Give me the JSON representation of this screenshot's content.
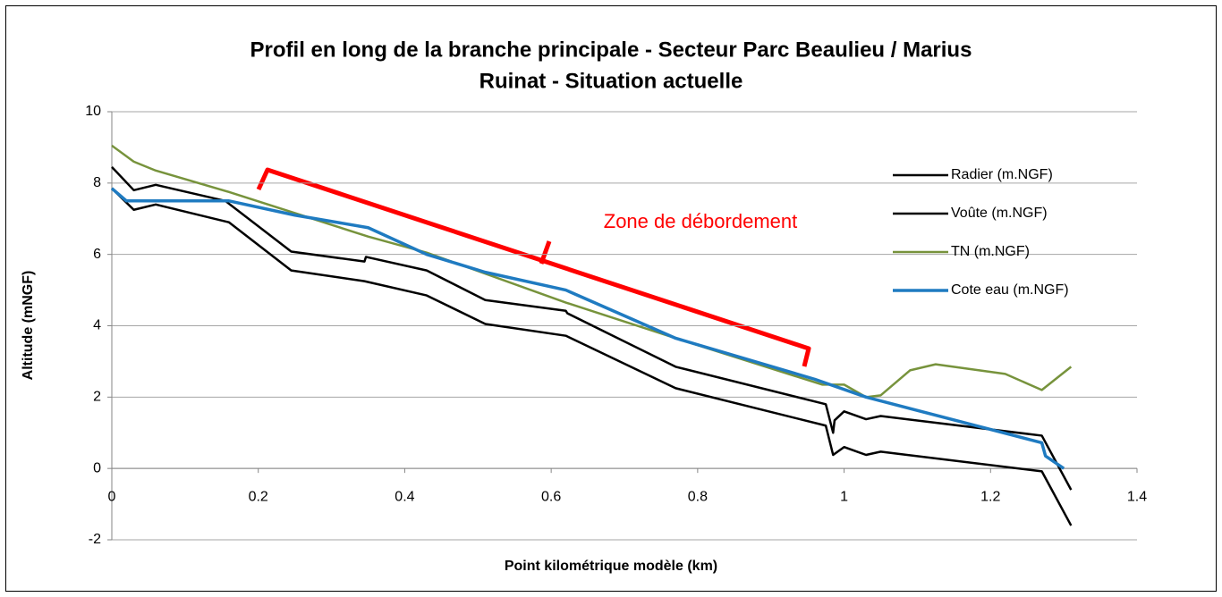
{
  "chart_data": {
    "type": "line",
    "title": [
      "Profil en long de la branche principale - Secteur Parc Beaulieu / Marius",
      "Ruinat - Situation actuelle"
    ],
    "x_label": "Point kilométrique modèle (km)",
    "y_label": "Altitude (mNGF)",
    "annotation": "Zone de débordement",
    "xlim": [
      0,
      1.4
    ],
    "xticks": [
      0,
      0.2,
      0.4,
      0.6,
      0.8,
      1,
      1.2,
      1.4
    ],
    "ylim": [
      -2,
      10
    ],
    "yticks": [
      -2,
      0,
      2,
      4,
      6,
      8,
      10
    ],
    "grid": true,
    "legend": "right",
    "series": [
      {
        "name": "Radier (m.NGF)",
        "color": "#000000",
        "x": [
          0,
          0.03,
          0.06,
          0.16,
          0.245,
          0.345,
          0.43,
          0.51,
          0.62,
          0.77,
          0.975,
          0.985,
          1.0,
          1.03,
          1.05,
          1.27,
          1.31
        ],
        "values": [
          7.85,
          7.25,
          7.4,
          6.9,
          5.55,
          5.25,
          4.85,
          4.05,
          3.72,
          2.25,
          1.2,
          0.38,
          0.6,
          0.38,
          0.47,
          -0.08,
          -1.6
        ]
      },
      {
        "name": "Voûte (m.NGF)",
        "color": "#000000",
        "x": [
          0,
          0.03,
          0.06,
          0.155,
          0.245,
          0.345,
          0.347,
          0.43,
          0.51,
          0.62,
          0.622,
          0.77,
          0.975,
          0.985,
          0.987,
          1.0,
          1.03,
          1.05,
          1.27,
          1.31
        ],
        "values": [
          8.45,
          7.8,
          7.95,
          7.5,
          6.08,
          5.8,
          5.93,
          5.55,
          4.72,
          4.42,
          4.35,
          2.85,
          1.8,
          1.0,
          1.35,
          1.6,
          1.38,
          1.47,
          0.92,
          -0.6
        ]
      },
      {
        "name": "TN (m.NGF)",
        "color": "#77933c",
        "x": [
          0,
          0.03,
          0.06,
          0.16,
          0.35,
          0.43,
          0.62,
          0.77,
          0.97,
          1.0,
          1.03,
          1.05,
          1.09,
          1.125,
          1.22,
          1.27,
          1.31
        ],
        "values": [
          9.05,
          8.6,
          8.35,
          7.75,
          6.5,
          6.05,
          4.65,
          3.65,
          2.35,
          2.35,
          2.0,
          2.05,
          2.75,
          2.92,
          2.65,
          2.2,
          2.85
        ]
      },
      {
        "name": "Cote eau (m.NGF)",
        "color": "#1f7bc1",
        "x": [
          0,
          0.02,
          0.16,
          0.25,
          0.35,
          0.43,
          0.51,
          0.62,
          0.77,
          0.96,
          1.03,
          1.27,
          1.275,
          1.3
        ],
        "values": [
          7.85,
          7.5,
          7.5,
          7.1,
          6.75,
          6.0,
          5.5,
          5.0,
          3.65,
          2.5,
          2.0,
          0.72,
          0.35,
          0.0
        ]
      }
    ]
  }
}
